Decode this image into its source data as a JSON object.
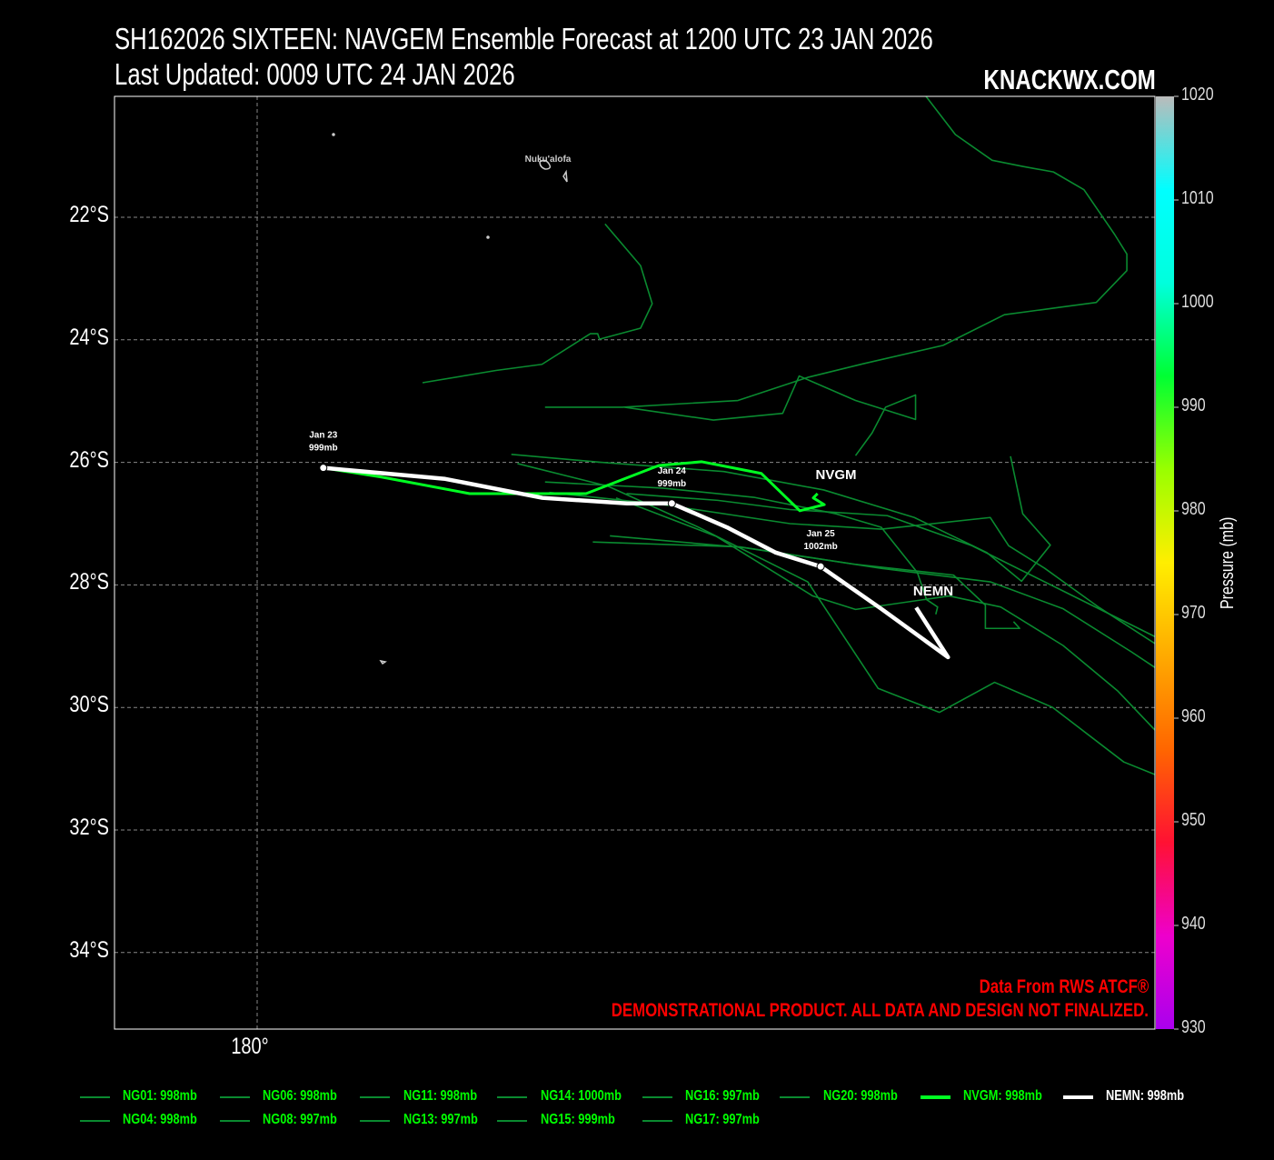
{
  "header": {
    "title": "SH162026 SIXTEEN: NAVGEM Ensemble Forecast at 1200 UTC 23 JAN 2026",
    "updated": "Last Updated: 0009 UTC 24 JAN 2026",
    "brand": "KNACKWX.COM"
  },
  "map": {
    "lat_ticks": [
      "22°S",
      "24°S",
      "26°S",
      "28°S",
      "30°S",
      "32°S",
      "34°S"
    ],
    "lon_ticks": [
      "180°"
    ],
    "place": "Nuku'alofa",
    "credits": {
      "source": "Data From RWS ATCF®",
      "disclaimer": "DEMONSTRATIONAL PRODUCT. ALL DATA AND DESIGN NOT FINALIZED."
    }
  },
  "colorbar": {
    "label": "Pressure (mb)",
    "ticks": [
      "1020",
      "1010",
      "1000",
      "990",
      "980",
      "970",
      "960",
      "950",
      "940",
      "930"
    ],
    "range": [
      930,
      1020
    ],
    "stops": [
      "#aa00ee",
      "#ee00cc",
      "#ff1133",
      "#ff6600",
      "#ffaa00",
      "#ffee00",
      "#99ff00",
      "#00ff33",
      "#00ffdd",
      "#00ffff",
      "#bbbbbb"
    ]
  },
  "chart_data": {
    "type": "map-tracks",
    "lon_range": [
      177.7,
      197.0
    ],
    "lat_range": [
      -35.25,
      -20.0
    ],
    "annotations": [
      {
        "line1": "Jan 23",
        "line2": "999mb",
        "point": [
          181.08,
          -26.09
        ]
      },
      {
        "line1": "Jan 24",
        "line2": "999mb",
        "point": [
          186.77,
          -26.67
        ]
      },
      {
        "line1": "Jan 25",
        "line2": "1002mb",
        "point": [
          189.2,
          -27.7
        ]
      }
    ],
    "model_labels": {
      "nvgm": "NVGM",
      "nemn": "NEMN"
    },
    "members": [
      [
        [
          190.9,
          -20.0
        ],
        [
          191.4,
          -20.65
        ],
        [
          192.0,
          -21.07
        ],
        [
          192.5,
          -21.17
        ],
        [
          193.0,
          -21.26
        ],
        [
          193.5,
          -21.55
        ],
        [
          194.0,
          -22.28
        ],
        [
          194.2,
          -22.6
        ],
        [
          194.2,
          -22.87
        ],
        [
          193.7,
          -23.39
        ],
        [
          193.1,
          -23.47
        ],
        [
          192.2,
          -23.59
        ],
        [
          191.2,
          -24.09
        ],
        [
          189.9,
          -24.39
        ],
        [
          189.0,
          -24.61
        ],
        [
          187.85,
          -24.99
        ],
        [
          185.96,
          -25.1
        ],
        [
          184.7,
          -25.1
        ]
      ],
      [
        [
          182.7,
          -24.7
        ],
        [
          183.9,
          -24.5
        ],
        [
          184.65,
          -24.4
        ],
        [
          185.44,
          -23.9
        ],
        [
          185.56,
          -23.9
        ],
        [
          185.59,
          -23.99
        ],
        [
          186.26,
          -23.81
        ],
        [
          186.45,
          -23.41
        ],
        [
          186.26,
          -22.79
        ],
        [
          185.68,
          -22.11
        ]
      ],
      [
        [
          186.0,
          -25.1
        ],
        [
          187.45,
          -25.31
        ],
        [
          188.58,
          -25.2
        ],
        [
          188.85,
          -24.59
        ],
        [
          189.77,
          -24.99
        ],
        [
          190.75,
          -25.3
        ],
        [
          190.75,
          -24.9
        ],
        [
          190.26,
          -25.1
        ],
        [
          190.04,
          -25.52
        ],
        [
          189.77,
          -25.89
        ]
      ],
      [
        [
          184.15,
          -25.87
        ],
        [
          185.62,
          -26.0
        ],
        [
          187.62,
          -26.15
        ],
        [
          189.25,
          -26.45
        ],
        [
          190.73,
          -26.9
        ],
        [
          191.91,
          -27.47
        ],
        [
          192.48,
          -27.94
        ],
        [
          192.95,
          -27.35
        ],
        [
          192.5,
          -26.84
        ],
        [
          192.3,
          -25.9
        ]
      ],
      [
        [
          184.7,
          -26.32
        ],
        [
          186.62,
          -26.42
        ],
        [
          188.11,
          -26.57
        ],
        [
          189.45,
          -26.84
        ],
        [
          190.19,
          -27.06
        ],
        [
          190.78,
          -27.8
        ],
        [
          190.93,
          -28.24
        ],
        [
          191.11,
          -28.36
        ],
        [
          191.08,
          -28.48
        ]
      ],
      [
        [
          184.25,
          -26.02
        ],
        [
          185.73,
          -26.39
        ],
        [
          187.21,
          -27.06
        ],
        [
          188.99,
          -27.95
        ],
        [
          190.14,
          -29.69
        ],
        [
          191.14,
          -30.08
        ],
        [
          192.04,
          -29.59
        ],
        [
          192.99,
          -30.0
        ],
        [
          194.15,
          -30.89
        ],
        [
          195.14,
          -31.29
        ],
        [
          195.44,
          -31.89
        ],
        [
          195.88,
          -32.26
        ],
        [
          196.35,
          -32.68
        ],
        [
          196.73,
          -32.42
        ]
      ],
      [
        [
          184.77,
          -26.49
        ],
        [
          186.62,
          -26.69
        ],
        [
          188.7,
          -27.0
        ],
        [
          190.19,
          -27.09
        ],
        [
          191.97,
          -26.9
        ],
        [
          192.27,
          -27.36
        ],
        [
          192.86,
          -27.73
        ],
        [
          193.75,
          -28.37
        ],
        [
          194.94,
          -29.14
        ],
        [
          196.0,
          -30.18
        ],
        [
          196.84,
          -30.18
        ],
        [
          197.27,
          -29.98
        ]
      ],
      [
        [
          185.86,
          -26.58
        ],
        [
          187.5,
          -27.21
        ],
        [
          189.07,
          -28.18
        ],
        [
          189.77,
          -28.4
        ],
        [
          191.3,
          -28.18
        ],
        [
          192.14,
          -28.36
        ],
        [
          193.16,
          -28.99
        ],
        [
          194.05,
          -29.73
        ],
        [
          194.87,
          -30.59
        ],
        [
          195.16,
          -30.99
        ],
        [
          195.46,
          -31.36
        ],
        [
          195.83,
          -31.69
        ],
        [
          196.45,
          -32.07
        ]
      ],
      [
        [
          185.76,
          -27.2
        ],
        [
          187.94,
          -27.39
        ],
        [
          190.19,
          -27.73
        ],
        [
          191.97,
          -27.95
        ],
        [
          193.16,
          -28.39
        ],
        [
          194.27,
          -29.09
        ],
        [
          195.46,
          -29.88
        ],
        [
          196.65,
          -30.69
        ],
        [
          197.17,
          -31.29
        ],
        [
          197.6,
          -32.03
        ],
        [
          198.45,
          -32.87
        ]
      ],
      [
        [
          185.48,
          -27.3
        ],
        [
          187.89,
          -27.38
        ],
        [
          189.74,
          -27.66
        ],
        [
          191.37,
          -27.84
        ],
        [
          191.89,
          -28.33
        ],
        [
          191.89,
          -28.71
        ],
        [
          192.45,
          -28.71
        ],
        [
          192.35,
          -28.6
        ]
      ],
      [
        [
          186.03,
          -26.51
        ],
        [
          187.52,
          -26.62
        ],
        [
          188.7,
          -26.77
        ],
        [
          190.29,
          -26.87
        ],
        [
          191.67,
          -27.36
        ],
        [
          193.16,
          -28.1
        ],
        [
          194.65,
          -28.84
        ],
        [
          195.46,
          -29.39
        ],
        [
          196.08,
          -30.18
        ]
      ]
    ],
    "nvgm": [
      [
        181.08,
        -26.09
      ],
      [
        182.03,
        -26.24
      ],
      [
        183.47,
        -26.51
      ],
      [
        185.37,
        -26.51
      ],
      [
        186.56,
        -26.05
      ],
      [
        187.26,
        -25.99
      ],
      [
        188.23,
        -26.18
      ],
      [
        188.86,
        -26.79
      ],
      [
        189.26,
        -26.69
      ],
      [
        189.08,
        -26.58
      ],
      [
        189.15,
        -26.51
      ]
    ],
    "nemn": [
      [
        181.08,
        -26.09
      ],
      [
        183.07,
        -26.27
      ],
      [
        184.66,
        -26.58
      ],
      [
        186.04,
        -26.67
      ],
      [
        186.77,
        -26.67
      ],
      [
        187.67,
        -27.06
      ],
      [
        188.46,
        -27.47
      ],
      [
        189.2,
        -27.7
      ],
      [
        190.19,
        -28.39
      ],
      [
        191.28,
        -29.18
      ],
      [
        190.76,
        -28.37
      ]
    ]
  },
  "legend": [
    {
      "label": "NG01: 998mb",
      "kind": "member"
    },
    {
      "label": "NG06: 998mb",
      "kind": "member"
    },
    {
      "label": "NG11: 998mb",
      "kind": "member"
    },
    {
      "label": "NG14: 1000mb",
      "kind": "member"
    },
    {
      "label": "NG16: 997mb",
      "kind": "member"
    },
    {
      "label": "NG20: 998mb",
      "kind": "member"
    },
    {
      "label": "NVGM: 998mb",
      "kind": "nvgm"
    },
    {
      "label": "NEMN: 998mb",
      "kind": "nemn"
    },
    {
      "label": "NG04: 998mb",
      "kind": "member"
    },
    {
      "label": "NG08: 997mb",
      "kind": "member"
    },
    {
      "label": "NG13: 997mb",
      "kind": "member"
    },
    {
      "label": "NG15: 999mb",
      "kind": "member"
    },
    {
      "label": "NG17: 997mb",
      "kind": "member"
    }
  ],
  "colors": {
    "member": "#0a8a30",
    "nvgm": "#00ff22",
    "nemn": "#ffffff",
    "grid": "#888888"
  }
}
